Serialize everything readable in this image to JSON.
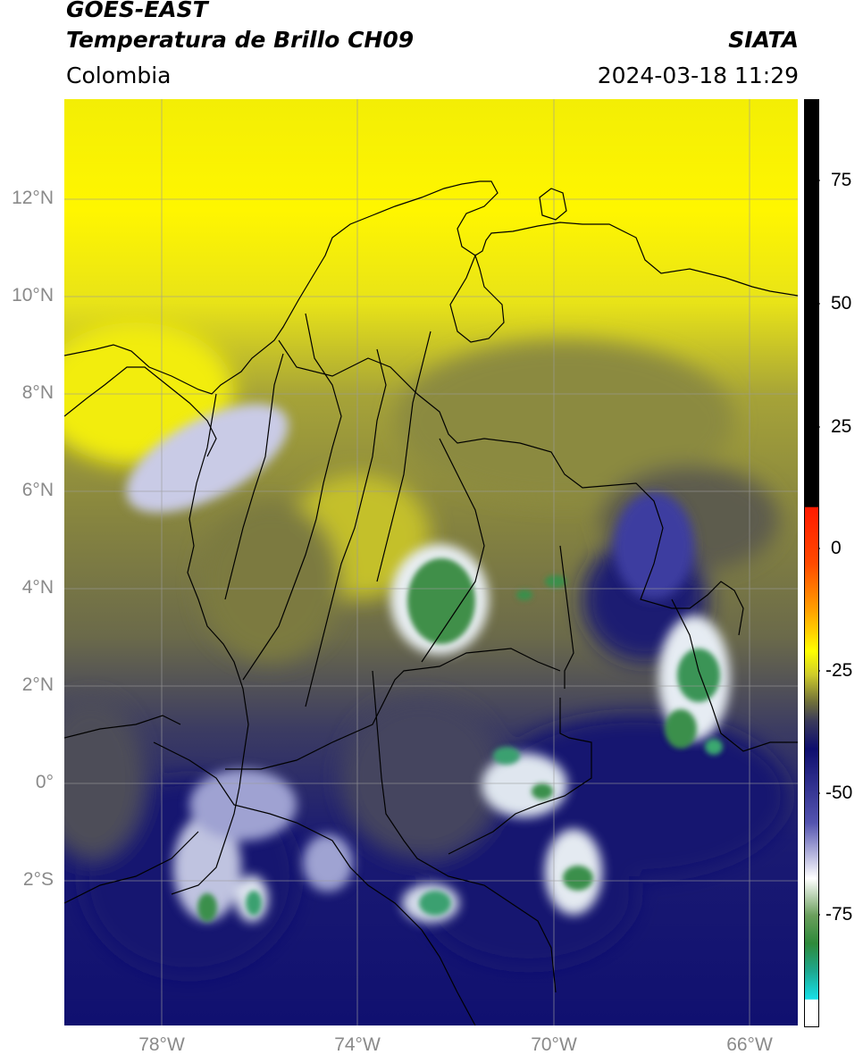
{
  "header": {
    "satellite": "GOES-EAST",
    "product": "Temperatura de Brillo CH09",
    "organization": "SIATA",
    "region": "Colombia",
    "datetime": "2024-03-18 11:29"
  },
  "map": {
    "lat_labels": [
      "12°N",
      "10°N",
      "8°N",
      "6°N",
      "4°N",
      "2°N",
      "0°",
      "2°S"
    ],
    "lon_labels": [
      "78°W",
      "74°W",
      "70°W",
      "66°W"
    ]
  },
  "colorbar": {
    "tick_labels": [
      "75",
      "50",
      "25",
      "0",
      "-25",
      "-50",
      "-75"
    ],
    "colors": {
      "black": "#000000",
      "red": "#ff1a00",
      "orange": "#ff9f00",
      "yellow": "#ffff00",
      "olive": "#6f6f3a",
      "navy": "#0e0e6e",
      "white": "#ffffff",
      "green": "#2e8a3a",
      "teal": "#1ea88f",
      "cyan": "#17e0e8"
    }
  }
}
